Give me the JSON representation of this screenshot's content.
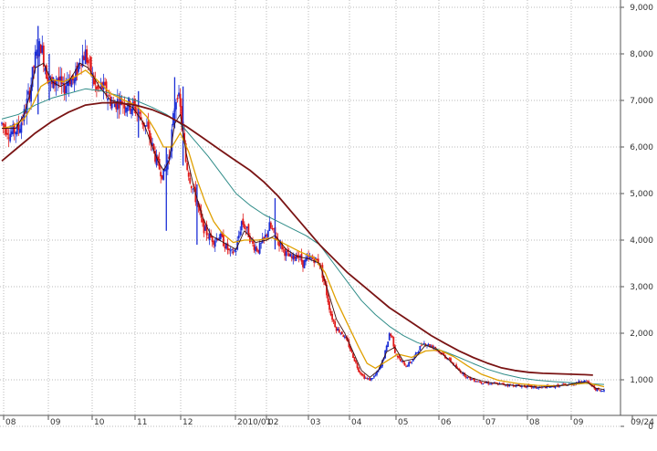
{
  "chart_data": {
    "type": "candlestick",
    "title": "",
    "xlabel": "",
    "ylabel": "",
    "ylim": [
      0,
      9000
    ],
    "y_ticks": [
      "0",
      "1,000",
      "2,000",
      "3,000",
      "4,000",
      "5,000",
      "6,000",
      "7,000",
      "8,000",
      "9,000"
    ],
    "y_tick_values": [
      0,
      1000,
      2000,
      3000,
      4000,
      5000,
      6000,
      7000,
      8000,
      9000
    ],
    "x_ticks": [
      "08",
      "09",
      "10",
      "11",
      "12",
      "2010/01",
      "02",
      "03",
      "04",
      "05",
      "06",
      "07",
      "08",
      "09",
      "09/24"
    ],
    "grid": true,
    "colors": {
      "up": "#1c2fd6",
      "down": "#e01818",
      "ma_fast": "#3a1010",
      "ma_mid": "#e0a000",
      "ma_slow": "#2f8c88",
      "ma_long": "#7a1414",
      "grid": "#b8b8b8"
    },
    "price_path": [
      [
        0,
        6500
      ],
      [
        6,
        6300
      ],
      [
        12,
        6400
      ],
      [
        16,
        6700
      ],
      [
        20,
        7200
      ],
      [
        24,
        7900
      ],
      [
        28,
        8200
      ],
      [
        32,
        7600
      ],
      [
        36,
        7300
      ],
      [
        40,
        7500
      ],
      [
        44,
        7200
      ],
      [
        48,
        7500
      ],
      [
        52,
        7400
      ],
      [
        56,
        7900
      ],
      [
        60,
        8000
      ],
      [
        64,
        7600
      ],
      [
        68,
        7200
      ],
      [
        72,
        7300
      ],
      [
        76,
        7100
      ],
      [
        80,
        6900
      ],
      [
        84,
        7000
      ],
      [
        88,
        6950
      ],
      [
        92,
        6900
      ],
      [
        96,
        6800
      ],
      [
        100,
        6600
      ],
      [
        104,
        6400
      ],
      [
        108,
        6000
      ],
      [
        112,
        5600
      ],
      [
        116,
        5400
      ],
      [
        120,
        5800
      ],
      [
        122,
        6300
      ],
      [
        124,
        6900
      ],
      [
        126,
        7200
      ],
      [
        128,
        6800
      ],
      [
        130,
        6300
      ],
      [
        132,
        5700
      ],
      [
        136,
        5200
      ],
      [
        140,
        4800
      ],
      [
        144,
        4300
      ],
      [
        148,
        4100
      ],
      [
        152,
        4000
      ],
      [
        156,
        4100
      ],
      [
        160,
        3900
      ],
      [
        164,
        3700
      ],
      [
        168,
        3800
      ],
      [
        172,
        4400
      ],
      [
        176,
        4200
      ],
      [
        180,
        3900
      ],
      [
        184,
        3800
      ],
      [
        188,
        4000
      ],
      [
        192,
        4300
      ],
      [
        196,
        4100
      ],
      [
        200,
        3900
      ],
      [
        204,
        3700
      ],
      [
        208,
        3600
      ],
      [
        212,
        3700
      ],
      [
        216,
        3500
      ],
      [
        220,
        3600
      ],
      [
        224,
        3600
      ],
      [
        228,
        3500
      ],
      [
        232,
        3000
      ],
      [
        236,
        2400
      ],
      [
        240,
        2100
      ],
      [
        244,
        2000
      ],
      [
        248,
        1800
      ],
      [
        252,
        1500
      ],
      [
        256,
        1200
      ],
      [
        260,
        1050
      ],
      [
        264,
        1000
      ],
      [
        268,
        1100
      ],
      [
        272,
        1300
      ],
      [
        276,
        1700
      ],
      [
        278,
        2000
      ],
      [
        280,
        1900
      ],
      [
        282,
        1600
      ],
      [
        286,
        1400
      ],
      [
        290,
        1300
      ],
      [
        294,
        1400
      ],
      [
        298,
        1600
      ],
      [
        302,
        1800
      ],
      [
        306,
        1750
      ],
      [
        310,
        1700
      ],
      [
        314,
        1600
      ],
      [
        318,
        1500
      ],
      [
        322,
        1400
      ],
      [
        326,
        1250
      ],
      [
        330,
        1150
      ],
      [
        334,
        1050
      ],
      [
        338,
        1000
      ],
      [
        344,
        950
      ],
      [
        352,
        920
      ],
      [
        360,
        900
      ],
      [
        368,
        880
      ],
      [
        376,
        860
      ],
      [
        384,
        830
      ],
      [
        392,
        850
      ],
      [
        400,
        870
      ],
      [
        408,
        900
      ],
      [
        414,
        950
      ],
      [
        418,
        1000
      ],
      [
        422,
        900
      ],
      [
        426,
        800
      ],
      [
        430,
        750
      ],
      [
        432,
        780
      ]
    ],
    "ma_fast": [
      [
        0,
        6400
      ],
      [
        10,
        6400
      ],
      [
        16,
        6700
      ],
      [
        20,
        7100
      ],
      [
        24,
        7700
      ],
      [
        30,
        7800
      ],
      [
        36,
        7400
      ],
      [
        42,
        7300
      ],
      [
        48,
        7400
      ],
      [
        56,
        7800
      ],
      [
        62,
        7700
      ],
      [
        70,
        7300
      ],
      [
        78,
        7000
      ],
      [
        86,
        6950
      ],
      [
        94,
        6850
      ],
      [
        102,
        6500
      ],
      [
        108,
        6000
      ],
      [
        112,
        5700
      ],
      [
        116,
        5500
      ],
      [
        120,
        5700
      ],
      [
        124,
        6500
      ],
      [
        128,
        6700
      ],
      [
        132,
        5900
      ],
      [
        138,
        5100
      ],
      [
        144,
        4500
      ],
      [
        150,
        4100
      ],
      [
        156,
        4000
      ],
      [
        162,
        3900
      ],
      [
        168,
        3800
      ],
      [
        174,
        4200
      ],
      [
        182,
        3950
      ],
      [
        190,
        4000
      ],
      [
        196,
        4100
      ],
      [
        204,
        3800
      ],
      [
        212,
        3650
      ],
      [
        220,
        3600
      ],
      [
        228,
        3500
      ],
      [
        234,
        2900
      ],
      [
        240,
        2300
      ],
      [
        246,
        2000
      ],
      [
        252,
        1600
      ],
      [
        258,
        1200
      ],
      [
        264,
        1050
      ],
      [
        270,
        1200
      ],
      [
        276,
        1600
      ],
      [
        282,
        1700
      ],
      [
        288,
        1400
      ],
      [
        296,
        1450
      ],
      [
        304,
        1750
      ],
      [
        312,
        1650
      ],
      [
        320,
        1450
      ],
      [
        328,
        1200
      ],
      [
        336,
        1050
      ],
      [
        346,
        960
      ],
      [
        356,
        910
      ],
      [
        366,
        880
      ],
      [
        376,
        860
      ],
      [
        386,
        840
      ],
      [
        396,
        860
      ],
      [
        406,
        890
      ],
      [
        414,
        940
      ],
      [
        420,
        950
      ],
      [
        426,
        820
      ],
      [
        432,
        790
      ]
    ],
    "ma_mid": [
      [
        0,
        6400
      ],
      [
        8,
        6450
      ],
      [
        16,
        6600
      ],
      [
        22,
        6900
      ],
      [
        28,
        7300
      ],
      [
        36,
        7450
      ],
      [
        44,
        7400
      ],
      [
        52,
        7500
      ],
      [
        60,
        7650
      ],
      [
        68,
        7450
      ],
      [
        78,
        7150
      ],
      [
        88,
        7000
      ],
      [
        96,
        6900
      ],
      [
        104,
        6650
      ],
      [
        110,
        6350
      ],
      [
        116,
        6000
      ],
      [
        122,
        6000
      ],
      [
        128,
        6300
      ],
      [
        134,
        5900
      ],
      [
        140,
        5300
      ],
      [
        146,
        4800
      ],
      [
        152,
        4400
      ],
      [
        158,
        4150
      ],
      [
        166,
        3950
      ],
      [
        174,
        4000
      ],
      [
        184,
        4000
      ],
      [
        194,
        4050
      ],
      [
        204,
        3900
      ],
      [
        214,
        3750
      ],
      [
        224,
        3620
      ],
      [
        232,
        3300
      ],
      [
        240,
        2700
      ],
      [
        248,
        2200
      ],
      [
        256,
        1700
      ],
      [
        262,
        1350
      ],
      [
        268,
        1250
      ],
      [
        276,
        1400
      ],
      [
        284,
        1550
      ],
      [
        294,
        1480
      ],
      [
        304,
        1620
      ],
      [
        314,
        1640
      ],
      [
        324,
        1500
      ],
      [
        334,
        1300
      ],
      [
        344,
        1120
      ],
      [
        356,
        990
      ],
      [
        370,
        920
      ],
      [
        384,
        880
      ],
      [
        398,
        870
      ],
      [
        410,
        900
      ],
      [
        420,
        930
      ],
      [
        428,
        880
      ],
      [
        432,
        850
      ]
    ],
    "ma_slow": [
      [
        0,
        6600
      ],
      [
        12,
        6700
      ],
      [
        24,
        6900
      ],
      [
        36,
        7050
      ],
      [
        48,
        7150
      ],
      [
        60,
        7250
      ],
      [
        72,
        7200
      ],
      [
        84,
        7100
      ],
      [
        96,
        7000
      ],
      [
        108,
        6850
      ],
      [
        118,
        6700
      ],
      [
        128,
        6500
      ],
      [
        138,
        6150
      ],
      [
        148,
        5800
      ],
      [
        158,
        5400
      ],
      [
        168,
        5000
      ],
      [
        178,
        4750
      ],
      [
        188,
        4550
      ],
      [
        198,
        4400
      ],
      [
        208,
        4250
      ],
      [
        218,
        4100
      ],
      [
        228,
        3900
      ],
      [
        238,
        3500
      ],
      [
        248,
        3100
      ],
      [
        258,
        2700
      ],
      [
        268,
        2400
      ],
      [
        278,
        2150
      ],
      [
        288,
        1950
      ],
      [
        298,
        1800
      ],
      [
        308,
        1700
      ],
      [
        318,
        1600
      ],
      [
        328,
        1480
      ],
      [
        338,
        1350
      ],
      [
        348,
        1230
      ],
      [
        360,
        1120
      ],
      [
        372,
        1040
      ],
      [
        384,
        990
      ],
      [
        396,
        960
      ],
      [
        408,
        940
      ],
      [
        420,
        920
      ],
      [
        432,
        900
      ]
    ],
    "ma_long": [
      [
        0,
        5700
      ],
      [
        12,
        6000
      ],
      [
        24,
        6300
      ],
      [
        36,
        6550
      ],
      [
        48,
        6750
      ],
      [
        60,
        6900
      ],
      [
        72,
        6950
      ],
      [
        84,
        6950
      ],
      [
        96,
        6900
      ],
      [
        108,
        6800
      ],
      [
        120,
        6650
      ],
      [
        132,
        6450
      ],
      [
        144,
        6200
      ],
      [
        156,
        5950
      ],
      [
        168,
        5700
      ],
      [
        178,
        5500
      ],
      [
        188,
        5250
      ],
      [
        198,
        4950
      ],
      [
        208,
        4600
      ],
      [
        218,
        4250
      ],
      [
        228,
        3900
      ],
      [
        238,
        3600
      ],
      [
        248,
        3300
      ],
      [
        258,
        3050
      ],
      [
        268,
        2800
      ],
      [
        278,
        2550
      ],
      [
        288,
        2350
      ],
      [
        298,
        2150
      ],
      [
        308,
        1950
      ],
      [
        318,
        1780
      ],
      [
        328,
        1620
      ],
      [
        338,
        1480
      ],
      [
        348,
        1360
      ],
      [
        358,
        1260
      ],
      [
        368,
        1200
      ],
      [
        378,
        1160
      ],
      [
        388,
        1140
      ],
      [
        398,
        1130
      ],
      [
        408,
        1120
      ],
      [
        418,
        1110
      ],
      [
        424,
        1100
      ]
    ],
    "spikes": [
      [
        26,
        6700,
        8600
      ],
      [
        34,
        7000,
        8000
      ],
      [
        98,
        6200,
        7200
      ],
      [
        118,
        4200,
        6000
      ],
      [
        124,
        6400,
        7500
      ],
      [
        130,
        5600,
        7300
      ],
      [
        140,
        3900,
        5200
      ],
      [
        196,
        3800,
        4900
      ]
    ]
  }
}
